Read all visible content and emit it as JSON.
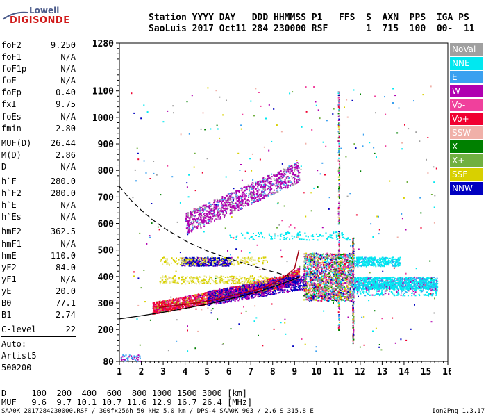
{
  "logo": {
    "line1": "Lowell",
    "line2": "DIGISONDE"
  },
  "header": {
    "line1": "Station YYYY DAY   DDD HHMMSS P1   FFS  S  AXN  PPS  IGA PS",
    "line2": "SaoLuis 2017 Oct11 284 230000 RSF       1  715  100  00-  11"
  },
  "params": {
    "group1": [
      {
        "label": "foF2",
        "value": "9.250"
      },
      {
        "label": "foF1",
        "value": "N/A"
      },
      {
        "label": "foF1p",
        "value": "N/A"
      },
      {
        "label": "foE",
        "value": "N/A"
      },
      {
        "label": "foEp",
        "value": "0.40"
      },
      {
        "label": "fxI",
        "value": "9.75"
      },
      {
        "label": "foEs",
        "value": "N/A"
      },
      {
        "label": "fmin",
        "value": "2.80"
      }
    ],
    "group2": [
      {
        "label": "MUF(D)",
        "value": "26.44"
      },
      {
        "label": "M(D)",
        "value": "2.86"
      },
      {
        "label": "D",
        "value": "N/A"
      }
    ],
    "group3": [
      {
        "label": "h`F",
        "value": "280.0"
      },
      {
        "label": "h`F2",
        "value": "280.0"
      },
      {
        "label": "h`E",
        "value": "N/A"
      },
      {
        "label": "h`Es",
        "value": "N/A"
      }
    ],
    "group4": [
      {
        "label": "hmF2",
        "value": "362.5"
      },
      {
        "label": "hmF1",
        "value": "N/A"
      },
      {
        "label": "hmE",
        "value": "110.0"
      },
      {
        "label": "yF2",
        "value": "84.0"
      },
      {
        "label": "yF1",
        "value": "N/A"
      },
      {
        "label": "yE",
        "value": "20.0"
      },
      {
        "label": "B0",
        "value": "77.1"
      },
      {
        "label": "B1",
        "value": "2.74"
      }
    ],
    "group5": [
      {
        "label": "C-level",
        "value": "22"
      }
    ],
    "group6": [
      {
        "label": "Auto:",
        "value": ""
      },
      {
        "label": "Artist5",
        "value": ""
      },
      {
        "label": "500200",
        "value": ""
      }
    ]
  },
  "legend": [
    {
      "label": "NoVal",
      "color": "#a0a0a0"
    },
    {
      "label": "NNE",
      "color": "#00e8f0"
    },
    {
      "label": "E",
      "color": "#3aa0f0"
    },
    {
      "label": "W",
      "color": "#b000b0"
    },
    {
      "label": "Vo-",
      "color": "#f0409c"
    },
    {
      "label": "Vo+",
      "color": "#f00030"
    },
    {
      "label": "SSW",
      "color": "#f0b0a8"
    },
    {
      "label": "X-",
      "color": "#008000"
    },
    {
      "label": "X+",
      "color": "#70b040"
    },
    {
      "label": "SSE",
      "color": "#d8d000"
    },
    {
      "label": "NNW",
      "color": "#0000c0"
    }
  ],
  "footer": {
    "line1": "D     100  200  400  600  800 1000 1500 3000 [km]",
    "line2": "MUF   9.6  9.7 10.1 10.7 11.6 12.9 16.7 26.4 [MHz]"
  },
  "statusbar": {
    "left": "SAA0K_2017284230000.RSF / 300fx256h 50 kHz 5.0 km / DPS-4 SAA0K 903 / 2.6 S 315.8 E",
    "right": "Ion2Png 1.3.17"
  },
  "chart_data": {
    "type": "scatter",
    "xlim": [
      1,
      16
    ],
    "ylim": [
      80,
      1280
    ],
    "x_ticks": [
      1,
      2,
      3,
      4,
      5,
      6,
      7,
      8,
      9,
      10,
      11,
      12,
      13,
      14,
      15,
      16
    ],
    "y_ticks": [
      80,
      200,
      300,
      400,
      500,
      600,
      700,
      800,
      900,
      1000,
      1100,
      1280
    ],
    "grid": false,
    "legend_position": "right",
    "lines": [
      {
        "style": "dashed",
        "x": [
          1,
          1.5,
          2,
          2.5,
          3,
          3.5,
          4,
          4.5,
          5,
          5.5,
          6,
          6.5,
          7,
          7.5,
          8,
          8.5,
          9
        ],
        "y": [
          740,
          690,
          650,
          615,
          585,
          560,
          535,
          515,
          497,
          482,
          468,
          455,
          442,
          430,
          418,
          407,
          396
        ]
      },
      {
        "style": "solid",
        "x": [
          1,
          2,
          3,
          4,
          5,
          6,
          7,
          8,
          9,
          9.25
        ],
        "y": [
          240,
          252,
          265,
          280,
          295,
          315,
          335,
          360,
          390,
          400
        ]
      },
      {
        "style": "solid-red",
        "x": [
          2.8,
          3.5,
          4.5,
          5.5,
          6.5,
          7.5,
          8,
          8.5,
          9,
          9.2
        ],
        "y": [
          283,
          290,
          300,
          315,
          335,
          355,
          372,
          395,
          430,
          500
        ]
      }
    ],
    "clusters": [
      {
        "series": "Vo+",
        "x_range": [
          2.5,
          9.2
        ],
        "y_center": [
          285,
          400
        ],
        "type": "trace"
      },
      {
        "series": "W",
        "x_range": [
          3.8,
          6.0
        ],
        "y_range": [
          440,
          475
        ]
      },
      {
        "series": "W",
        "x_range": [
          4.0,
          9.2
        ],
        "y_range": [
          640,
          830
        ]
      },
      {
        "series": "NNE",
        "x_range": [
          11.5,
          15.5
        ],
        "y_range": [
          350,
          410
        ]
      },
      {
        "series": "NNE",
        "x_range": [
          11.5,
          13.5
        ],
        "y_range": [
          440,
          475
        ]
      },
      {
        "series": "SSE",
        "x_range": [
          9.5,
          11.5
        ],
        "y_range": [
          330,
          480
        ]
      },
      {
        "series": "NNW",
        "x_range": [
          5.0,
          9.5
        ],
        "y_range": [
          320,
          400
        ]
      }
    ]
  }
}
